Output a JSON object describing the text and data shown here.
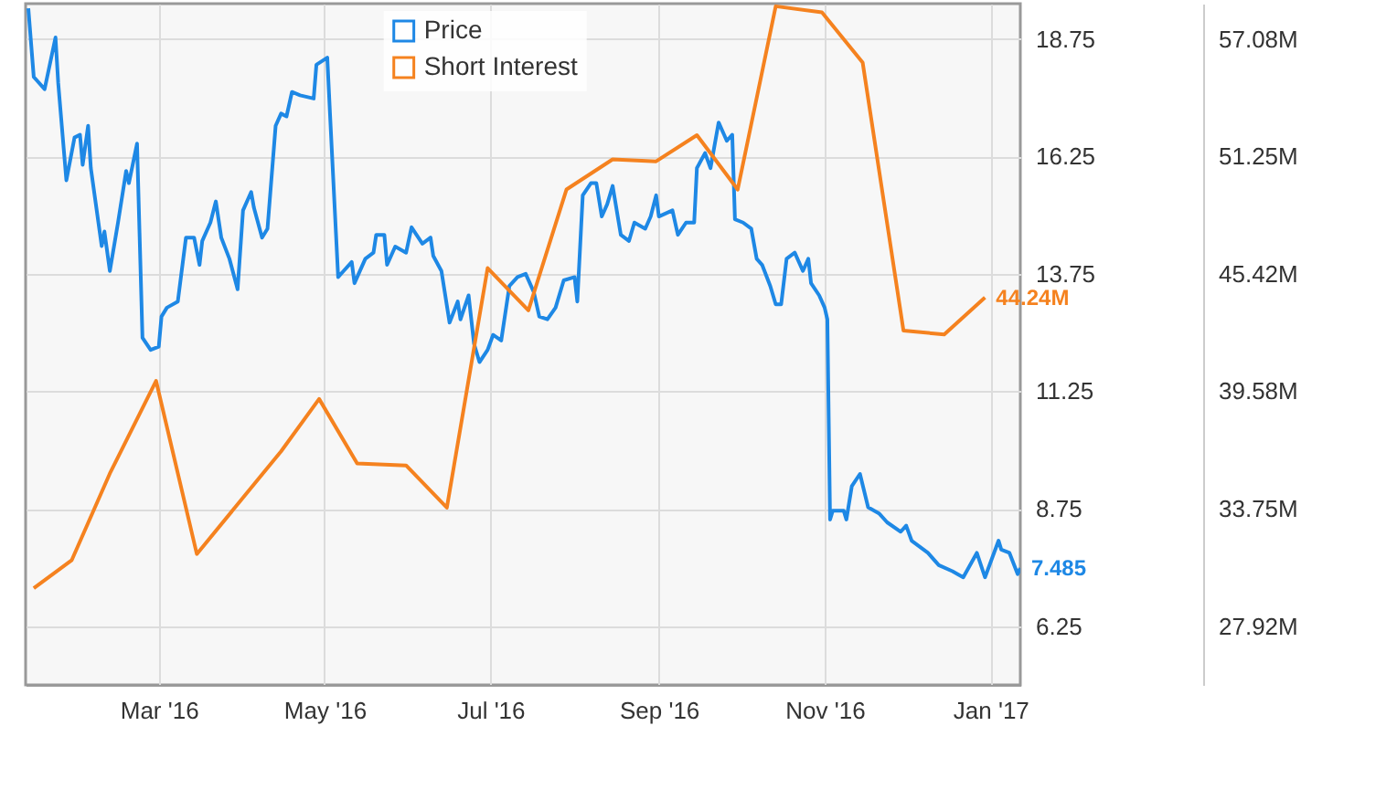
{
  "chart_data": {
    "type": "line",
    "xlim": [
      "2016-01-12",
      "2017-01-12"
    ],
    "xticks": [
      {
        "value": "2016-03-01",
        "label": "Mar '16"
      },
      {
        "value": "2016-05-01",
        "label": "May '16"
      },
      {
        "value": "2016-07-01",
        "label": "Jul '16"
      },
      {
        "value": "2016-09-01",
        "label": "Sep '16"
      },
      {
        "value": "2016-11-01",
        "label": "Nov '16"
      },
      {
        "value": "2017-01-01",
        "label": "Jan '17"
      }
    ],
    "ylim": [
      5.0,
      19.5
    ],
    "yticks": [
      6.25,
      8.75,
      11.25,
      13.75,
      16.25,
      18.75
    ],
    "y2lim": [
      25.0,
      58.83
    ],
    "y2ticks": [
      {
        "value": 27.92,
        "label": "27.92M"
      },
      {
        "value": 33.75,
        "label": "33.75M"
      },
      {
        "value": 39.58,
        "label": "39.58M"
      },
      {
        "value": 45.42,
        "label": "45.42M"
      },
      {
        "value": 51.25,
        "label": "51.25M"
      },
      {
        "value": 57.08,
        "label": "57.08M"
      }
    ],
    "grid": true,
    "legend": "top",
    "marker": "none",
    "line_style": "solid",
    "series": [
      {
        "name": "Price",
        "color": "#1e88e5",
        "x": [
          "2016-01-13",
          "2016-01-15",
          "2016-01-19",
          "2016-01-23",
          "2016-01-24",
          "2016-01-27",
          "2016-01-30",
          "2016-02-01",
          "2016-02-02",
          "2016-02-04",
          "2016-02-05",
          "2016-02-09",
          "2016-02-10",
          "2016-02-12",
          "2016-02-15",
          "2016-02-18",
          "2016-02-19",
          "2016-02-22",
          "2016-02-24",
          "2016-02-27",
          "2016-03-01",
          "2016-03-02",
          "2016-03-04",
          "2016-03-08",
          "2016-03-11",
          "2016-03-14",
          "2016-03-16",
          "2016-03-17",
          "2016-03-20",
          "2016-03-22",
          "2016-03-24",
          "2016-03-27",
          "2016-03-30",
          "2016-04-01",
          "2016-04-04",
          "2016-04-05",
          "2016-04-08",
          "2016-04-10",
          "2016-04-13",
          "2016-04-15",
          "2016-04-17",
          "2016-04-19",
          "2016-04-22",
          "2016-04-27",
          "2016-04-28",
          "2016-05-02",
          "2016-05-03",
          "2016-05-06",
          "2016-05-08",
          "2016-05-11",
          "2016-05-12",
          "2016-05-16",
          "2016-05-19",
          "2016-05-20",
          "2016-05-23",
          "2016-05-24",
          "2016-05-27",
          "2016-05-31",
          "2016-06-02",
          "2016-06-06",
          "2016-06-09",
          "2016-06-10",
          "2016-06-13",
          "2016-06-16",
          "2016-06-19",
          "2016-06-20",
          "2016-06-23",
          "2016-06-25",
          "2016-06-27",
          "2016-06-30",
          "2016-07-02",
          "2016-07-05",
          "2016-07-08",
          "2016-07-11",
          "2016-07-14",
          "2016-07-17",
          "2016-07-19",
          "2016-07-22",
          "2016-07-25",
          "2016-07-28",
          "2016-08-01",
          "2016-08-02",
          "2016-08-04",
          "2016-08-07",
          "2016-08-09",
          "2016-08-11",
          "2016-08-13",
          "2016-08-15",
          "2016-08-18",
          "2016-08-21",
          "2016-08-23",
          "2016-08-27",
          "2016-08-29",
          "2016-08-31",
          "2016-09-01",
          "2016-09-06",
          "2016-09-08",
          "2016-09-11",
          "2016-09-14",
          "2016-09-15",
          "2016-09-18",
          "2016-09-20",
          "2016-09-23",
          "2016-09-25",
          "2016-09-26",
          "2016-09-28",
          "2016-09-29",
          "2016-10-02",
          "2016-10-05",
          "2016-10-07",
          "2016-10-09",
          "2016-10-12",
          "2016-10-14",
          "2016-10-16",
          "2016-10-18",
          "2016-10-21",
          "2016-10-24",
          "2016-10-26",
          "2016-10-27",
          "2016-10-30",
          "2016-11-01",
          "2016-11-02",
          "2016-11-03",
          "2016-11-04",
          "2016-11-08",
          "2016-11-09",
          "2016-11-11",
          "2016-11-14",
          "2016-11-17",
          "2016-11-21",
          "2016-11-24",
          "2016-11-29",
          "2016-12-01",
          "2016-12-03",
          "2016-12-09",
          "2016-12-13",
          "2016-12-18",
          "2016-12-22",
          "2016-12-27",
          "2016-12-30",
          "2017-01-04",
          "2017-01-05",
          "2017-01-08",
          "2017-01-11",
          "2017-01-12"
        ],
        "values": [
          19.4,
          17.94,
          17.68,
          18.78,
          17.81,
          15.74,
          16.65,
          16.71,
          16.07,
          16.9,
          16.0,
          14.34,
          14.65,
          13.81,
          14.84,
          15.94,
          15.68,
          16.52,
          12.39,
          12.13,
          12.2,
          12.84,
          13.03,
          13.16,
          14.52,
          14.52,
          13.94,
          14.45,
          14.84,
          15.29,
          14.52,
          14.07,
          13.42,
          15.1,
          15.49,
          15.16,
          14.52,
          14.71,
          16.9,
          17.16,
          17.1,
          17.62,
          17.55,
          17.48,
          18.2,
          18.35,
          17.16,
          13.68,
          13.81,
          14.0,
          13.55,
          14.07,
          14.2,
          14.58,
          14.58,
          13.94,
          14.33,
          14.2,
          14.74,
          14.39,
          14.52,
          14.13,
          13.81,
          12.71,
          13.16,
          12.78,
          13.29,
          12.26,
          11.87,
          12.13,
          12.45,
          12.33,
          13.49,
          13.68,
          13.75,
          13.36,
          12.84,
          12.78,
          13.03,
          13.61,
          13.68,
          13.16,
          15.42,
          15.68,
          15.68,
          14.97,
          15.23,
          15.62,
          14.58,
          14.45,
          14.84,
          14.71,
          14.97,
          15.42,
          14.97,
          15.1,
          14.58,
          14.84,
          14.84,
          16.0,
          16.32,
          16.0,
          16.97,
          16.71,
          16.58,
          16.71,
          14.91,
          14.84,
          14.71,
          14.07,
          13.94,
          13.49,
          13.1,
          13.1,
          14.07,
          14.2,
          13.81,
          14.07,
          13.55,
          13.29,
          13.03,
          12.78,
          8.52,
          8.71,
          8.71,
          8.52,
          9.23,
          9.49,
          8.78,
          8.65,
          8.46,
          8.26,
          8.39,
          8.07,
          7.81,
          7.55,
          7.42,
          7.29,
          7.81,
          7.29,
          8.07,
          7.88,
          7.81,
          7.36,
          7.485
        ],
        "value_labels": [
          null,
          null,
          null,
          null,
          null,
          null,
          null,
          null,
          null,
          null,
          null,
          null,
          null,
          null,
          null,
          null,
          null,
          null,
          null,
          null,
          null,
          null,
          null,
          null,
          null,
          null,
          null,
          null,
          null,
          null,
          null,
          null,
          null,
          null,
          null,
          null,
          null,
          null,
          null,
          null,
          null,
          null,
          null,
          null,
          null,
          null,
          null,
          null,
          null,
          null,
          null,
          null,
          null,
          null,
          null,
          null,
          null,
          null,
          null,
          null,
          null,
          null,
          null,
          null,
          null,
          null,
          null,
          null,
          null,
          null,
          null,
          null,
          null,
          null,
          null,
          null,
          null,
          null,
          null,
          null,
          null,
          null,
          null,
          null,
          null,
          null,
          null,
          null,
          null,
          null,
          null,
          null,
          null,
          null,
          null,
          null,
          null,
          null,
          null,
          null,
          null,
          null,
          null,
          null,
          null,
          null,
          null,
          null,
          null,
          null,
          null,
          null,
          null,
          null,
          null,
          null,
          null,
          null,
          null,
          null,
          null,
          null,
          null,
          null,
          null,
          null,
          null,
          null,
          null,
          null,
          null,
          null,
          null,
          null,
          null,
          null,
          null,
          null,
          null,
          null,
          null,
          null,
          null,
          null,
          "7.485"
        ]
      },
      {
        "name": "Short Interest",
        "color": "#f5821f",
        "axis": "y2",
        "x": [
          "2016-01-15",
          "2016-01-29",
          "2016-02-12",
          "2016-02-29",
          "2016-03-15",
          "2016-04-15",
          "2016-04-29",
          "2016-05-13",
          "2016-05-31",
          "2016-06-15",
          "2016-06-30",
          "2016-07-15",
          "2016-07-29",
          "2016-08-15",
          "2016-08-31",
          "2016-09-15",
          "2016-09-30",
          "2016-10-14",
          "2016-10-31",
          "2016-11-15",
          "2016-11-30",
          "2016-12-15",
          "2016-12-30"
        ],
        "values": [
          29.8,
          31.2,
          35.5,
          40.1,
          31.5,
          36.6,
          39.2,
          36.0,
          35.9,
          33.8,
          45.7,
          43.6,
          49.6,
          51.1,
          51.0,
          52.3,
          49.6,
          58.7,
          58.4,
          55.9,
          42.6,
          42.4,
          44.24
        ],
        "value_labels": [
          null,
          null,
          null,
          null,
          null,
          null,
          null,
          null,
          null,
          null,
          null,
          null,
          null,
          null,
          null,
          null,
          null,
          null,
          null,
          null,
          null,
          null,
          "44.24M"
        ]
      }
    ]
  }
}
